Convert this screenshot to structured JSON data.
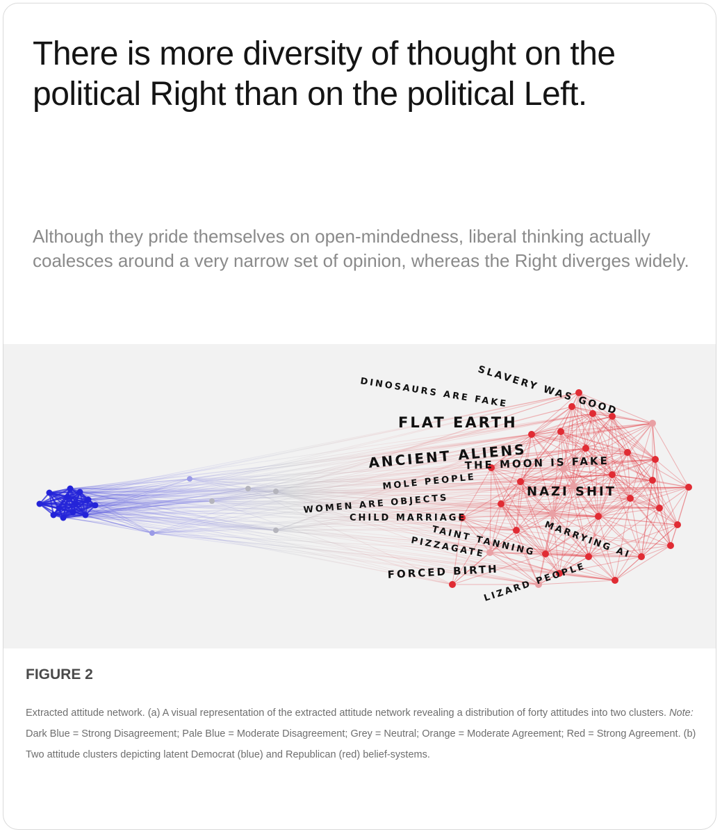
{
  "headline": "There is more diversity of thought on the political Right than on the political Left.",
  "subheadline": "Although they pride themselves on open-mindedness, liberal thinking actually coalesces around a very narrow set of opinion, whereas the Right diverges widely.",
  "figure": {
    "label": "FIGURE 2",
    "caption_part1": "Extracted attitude network. (a) A visual representation of the extracted attitude network revealing a distribution of forty attitudes into two clusters.",
    "caption_note_label": "Note:",
    "caption_part2": "Dark Blue = Strong Disagreement; Pale Blue = Moderate Disagreement; Grey = Neutral; Orange = Moderate Agreement; Red = Strong Agreement. (b) Two attitude clusters depicting latent Democrat (blue) and Republican (red) belief-systems."
  },
  "overlay_labels": [
    "SLAVERY WAS GOOD",
    "DINOSAURS ARE FAKE",
    "FLAT EARTH",
    "ANCIENT ALIENS",
    "THE MOON IS FAKE",
    "MOLE PEOPLE",
    "NAZI SHIT",
    "WOMEN ARE OBJECTS",
    "CHILD MARRIAGE",
    "MARRYING AI",
    "TAINT TANNING",
    "PIZZAGATE",
    "FORCED BIRTH",
    "LIZARD PEOPLE"
  ],
  "colors": {
    "strong_disagreement": "#2424d8",
    "moderate_disagreement": "#9a9ae6",
    "neutral": "#b4b4bc",
    "moderate_agreement": "#e9a0a4",
    "strong_agreement": "#e02c34"
  }
}
